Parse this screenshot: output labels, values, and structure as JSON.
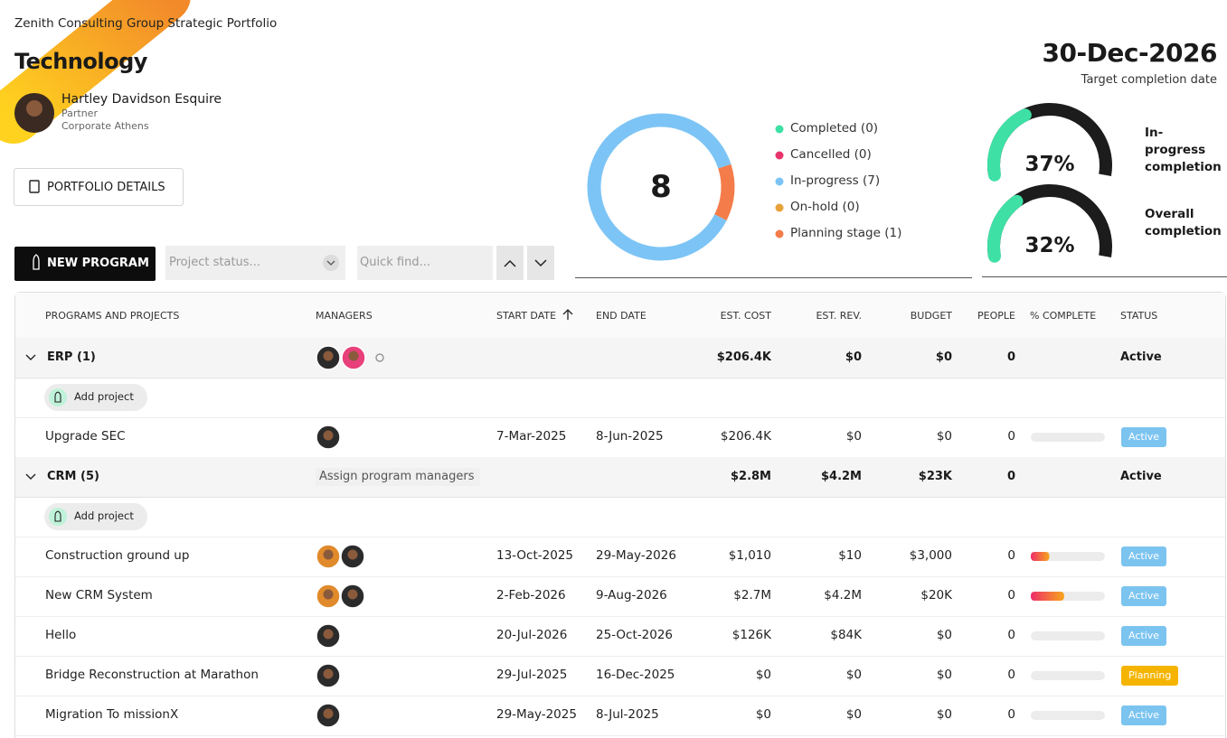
{
  "header": {
    "organization": "Zenith Consulting Group Strategic Portfolio",
    "title": "Technology",
    "person": {
      "name": "Hartley Davidson Esquire",
      "role": "Partner",
      "location": "Corporate Athens"
    }
  },
  "actions": {
    "portfolio_details": "PORTFOLIO DETAILS",
    "new_program": "NEW PROGRAM",
    "status_filter_placeholder": "Project status...",
    "quick_find_placeholder": "Quick find..."
  },
  "target": {
    "date": "30-Dec-2026",
    "label": "Target completion date"
  },
  "chart_data": [
    {
      "type": "donut",
      "center_label": 8,
      "categories": [
        "Completed (0)",
        "Cancelled (0)",
        "In-progress (7)",
        "On-hold (0)",
        "Planning stage (1)"
      ],
      "values": [
        0,
        0,
        7,
        0,
        1
      ],
      "colors": [
        "#3ee0a6",
        "#e8336d",
        "#7cc4f5",
        "#e8a23a",
        "#f47c4a"
      ]
    },
    {
      "type": "gauge",
      "title": "In-progress completion",
      "value": 37,
      "value_label": "37%",
      "ylim": [
        0,
        100
      ],
      "color": "#3ee0a6",
      "track_color": "#1c1c1c"
    },
    {
      "type": "gauge",
      "title": "Overall completion",
      "value": 32,
      "value_label": "32%",
      "ylim": [
        0,
        100
      ],
      "color": "#3ee0a6",
      "track_color": "#1c1c1c"
    }
  ],
  "table": {
    "columns": [
      "PROGRAMS AND PROJECTS",
      "MANAGERS",
      "START DATE",
      "END DATE",
      "EST. COST",
      "EST. REV.",
      "BUDGET",
      "PEOPLE",
      "% COMPLETE",
      "STATUS"
    ],
    "complete_range": [
      0,
      100
    ],
    "status_colors": {
      "Active": "#7cc4f0",
      "Planning": "#f5b400"
    },
    "groups": [
      {
        "name": "ERP (1)",
        "est_cost": "$206.4K",
        "est_rev": "$0",
        "budget": "$0",
        "people": 0,
        "status": "Active",
        "add_project": "Add project",
        "rows": [
          {
            "name": "Upgrade SEC",
            "start": "7-Mar-2025",
            "end": "8-Jun-2025",
            "est_cost": "$206.4K",
            "est_rev": "$0",
            "budget": "$0",
            "people": 0,
            "complete": 0,
            "status": "Active"
          }
        ]
      },
      {
        "name": "CRM (5)",
        "managers_placeholder": "Assign program managers",
        "est_cost": "$2.8M",
        "est_rev": "$4.2M",
        "budget": "$23K",
        "people": 0,
        "status": "Active",
        "add_project": "Add project",
        "rows": [
          {
            "name": "Construction ground up",
            "start": "13-Oct-2025",
            "end": "29-May-2026",
            "est_cost": "$1,010",
            "est_rev": "$10",
            "budget": "$3,000",
            "people": 0,
            "complete": 25,
            "status": "Active"
          },
          {
            "name": "New CRM System",
            "start": "2-Feb-2026",
            "end": "9-Aug-2026",
            "est_cost": "$2.7M",
            "est_rev": "$4.2M",
            "budget": "$20K",
            "people": 0,
            "complete": 45,
            "status": "Active"
          },
          {
            "name": "Hello",
            "start": "20-Jul-2026",
            "end": "25-Oct-2026",
            "est_cost": "$126K",
            "est_rev": "$84K",
            "budget": "$0",
            "people": 0,
            "complete": 0,
            "status": "Active"
          },
          {
            "name": "Bridge Reconstruction at Marathon",
            "start": "29-Jul-2025",
            "end": "16-Dec-2025",
            "est_cost": "$0",
            "est_rev": "$0",
            "budget": "$0",
            "people": 0,
            "complete": 0,
            "status": "Planning"
          },
          {
            "name": "Migration To missionX",
            "start": "29-May-2025",
            "end": "8-Jul-2025",
            "est_cost": "$0",
            "est_rev": "$0",
            "budget": "$0",
            "people": 0,
            "complete": 0,
            "status": "Active"
          }
        ]
      }
    ]
  }
}
